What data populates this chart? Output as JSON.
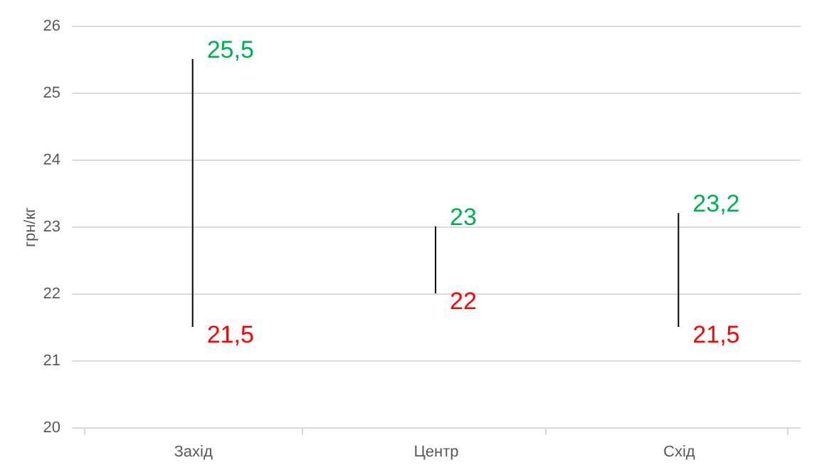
{
  "chart_data": {
    "type": "bar",
    "ylabel": "грн/кг",
    "categories": [
      "Захід",
      "Центр",
      "Схід"
    ],
    "ylim": [
      20,
      26
    ],
    "yticks": [
      20,
      21,
      22,
      23,
      24,
      25,
      26
    ],
    "grid": "y",
    "series": [
      {
        "color": "#000000",
        "base": [
          21.5,
          22,
          21.5
        ],
        "values": [
          4,
          1,
          1.7
        ]
      }
    ],
    "annotations": [
      {
        "text": "25,5",
        "x": "Захід",
        "y": 25.5
      },
      {
        "text": "21,5",
        "x": "Захід",
        "y": 21.5
      },
      {
        "text": "23",
        "x": "Центр",
        "y": 23
      },
      {
        "text": "22",
        "x": "Центр",
        "y": 22
      },
      {
        "text": "23,2",
        "x": "Схід",
        "y": 23.2
      },
      {
        "text": "21,5",
        "x": "Схід",
        "y": 21.5
      }
    ]
  }
}
